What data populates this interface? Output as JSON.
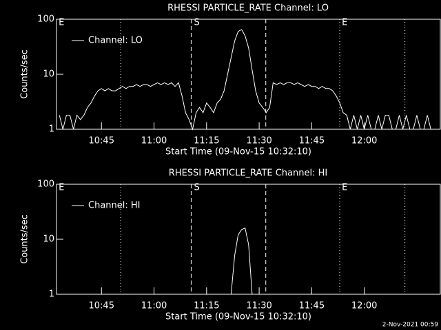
{
  "chart_data": [
    {
      "type": "line",
      "title": "RHESSI PARTICLE_RATE Channel: LO",
      "xlabel": "Start Time (09-Nov-15 10:32:10)",
      "ylabel": "Counts/sec",
      "xlim": [
        632.17,
        741.7
      ],
      "xticks": [
        {
          "value": 645,
          "label": "10:45"
        },
        {
          "value": 660,
          "label": "11:00"
        },
        {
          "value": 675,
          "label": "11:15"
        },
        {
          "value": 690,
          "label": "11:30"
        },
        {
          "value": 705,
          "label": "11:45"
        },
        {
          "value": 720,
          "label": "12:00"
        }
      ],
      "ylim": [
        1,
        100
      ],
      "yticks": [
        1,
        10,
        100
      ],
      "log_y": true,
      "legend": "upper left",
      "vlines": [
        {
          "x": 650.5,
          "style": "dotted"
        },
        {
          "x": 670.6,
          "style": "dashed"
        },
        {
          "x": 691.9,
          "style": "dashed"
        },
        {
          "x": 713.0,
          "style": "dotted"
        },
        {
          "x": 731.6,
          "style": "dotted"
        }
      ],
      "flags": [
        {
          "x": 632.4,
          "label": "E"
        },
        {
          "x": 671.0,
          "label": "S"
        },
        {
          "x": 713.2,
          "label": "E"
        }
      ],
      "x": [
        633,
        634,
        635,
        636,
        637,
        638,
        639,
        640,
        641,
        642,
        643,
        644,
        645,
        646,
        647,
        648,
        649,
        650,
        651,
        652,
        653,
        654,
        655,
        656,
        657,
        658,
        659,
        660,
        661,
        662,
        663,
        664,
        665,
        666,
        667,
        668,
        669,
        670,
        671,
        672,
        673,
        674,
        675,
        676,
        677,
        678,
        679,
        680,
        681,
        682,
        683,
        684,
        685,
        686,
        687,
        688,
        689,
        690,
        691,
        692,
        693,
        694,
        695,
        696,
        697,
        698,
        699,
        700,
        701,
        702,
        703,
        704,
        705,
        706,
        707,
        708,
        709,
        710,
        711,
        712,
        713,
        714,
        715,
        716,
        717,
        718,
        719,
        720,
        721,
        722,
        723,
        724,
        725,
        726,
        727,
        728,
        729,
        730,
        731,
        732,
        733,
        734,
        735,
        736,
        737,
        738,
        739,
        740
      ],
      "series": [
        {
          "name": "Channel: LO",
          "color": "#ffffff",
          "values": [
            1.8,
            1,
            1.8,
            1.8,
            1,
            1.8,
            1.5,
            1.8,
            2.5,
            3,
            4,
            5,
            5.5,
            5,
            5.5,
            5,
            5,
            5.5,
            6,
            5.5,
            6,
            6,
            6.5,
            6,
            6.5,
            6.5,
            6,
            6.5,
            7,
            6.5,
            7,
            6.5,
            7,
            6,
            7,
            4,
            2,
            1.5,
            1,
            2,
            2.5,
            2,
            3,
            2.5,
            2,
            3,
            3.5,
            5,
            10,
            20,
            40,
            60,
            65,
            50,
            30,
            12,
            5,
            3,
            2.5,
            2,
            2.5,
            7,
            6.5,
            7,
            6.5,
            7,
            7,
            6.5,
            7,
            6.5,
            6,
            6.5,
            6,
            6,
            5.5,
            6,
            5.5,
            5.5,
            5,
            4,
            3,
            2,
            1.8,
            1,
            1.8,
            1,
            1.8,
            1,
            1.8,
            1,
            1,
            1.8,
            1,
            1.8,
            1.8,
            1,
            1,
            1.8,
            1,
            1.8,
            1,
            1,
            1.8,
            1,
            1,
            1.8,
            1,
            1
          ]
        }
      ]
    },
    {
      "type": "line",
      "title": "RHESSI PARTICLE_RATE Channel: HI",
      "xlabel": "Start Time (09-Nov-15 10:32:10)",
      "ylabel": "Counts/sec",
      "xlim": [
        632.17,
        741.7
      ],
      "xticks": [
        {
          "value": 645,
          "label": "10:45"
        },
        {
          "value": 660,
          "label": "11:00"
        },
        {
          "value": 675,
          "label": "11:15"
        },
        {
          "value": 690,
          "label": "11:30"
        },
        {
          "value": 705,
          "label": "11:45"
        },
        {
          "value": 720,
          "label": "12:00"
        }
      ],
      "ylim": [
        1,
        100
      ],
      "yticks": [
        1,
        10,
        100
      ],
      "log_y": true,
      "legend": "upper left",
      "vlines": [
        {
          "x": 650.5,
          "style": "dotted"
        },
        {
          "x": 670.6,
          "style": "dashed"
        },
        {
          "x": 691.9,
          "style": "dashed"
        },
        {
          "x": 713.0,
          "style": "dotted"
        },
        {
          "x": 731.6,
          "style": "dotted"
        }
      ],
      "flags": [
        {
          "x": 632.4,
          "label": "E"
        },
        {
          "x": 671.0,
          "label": "S"
        },
        {
          "x": 713.2,
          "label": "E"
        }
      ],
      "x": [
        682,
        683,
        684,
        685,
        686,
        687,
        688
      ],
      "series": [
        {
          "name": "Channel: HI",
          "color": "#ffffff",
          "values": [
            1,
            5,
            12,
            15,
            16,
            8,
            1
          ]
        }
      ]
    }
  ],
  "footer": "2-Nov-2021 00:59"
}
